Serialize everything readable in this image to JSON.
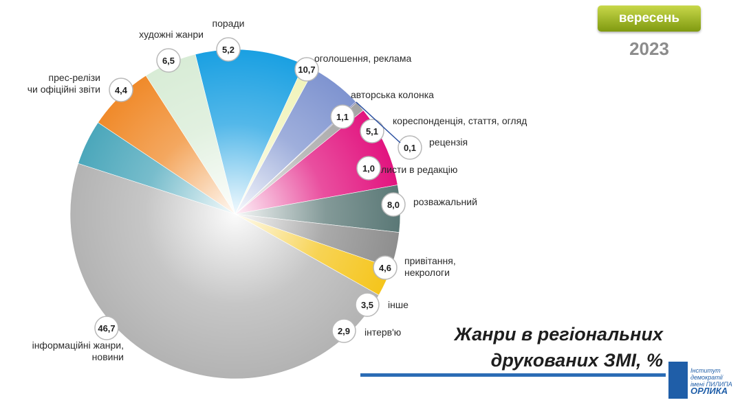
{
  "header": {
    "month": "вересень",
    "year": "2023"
  },
  "title_lines": [
    "Жанри в регіональних",
    "друкованих ЗМІ, %"
  ],
  "logo": {
    "line1": "Інститут демократії",
    "line2": "імені ПИЛИПА",
    "line3": "ОРЛИКА"
  },
  "colors": {
    "badge": "#9cb51f",
    "rule": "#2b6cb5"
  },
  "chart_data": {
    "type": "pie",
    "title": "Жанри в регіональних друкованих ЗМІ, %",
    "slices": [
      {
        "label": [
          "оголошення, реклама"
        ],
        "value": 10.7,
        "display": "10,7",
        "color": "#1aa0e2"
      },
      {
        "label": [
          "авторська колонка"
        ],
        "value": 1.1,
        "display": "1,1",
        "color": "#f0f3b8"
      },
      {
        "label": [
          "кореспонденція, стаття, огляд"
        ],
        "value": 5.1,
        "display": "5,1",
        "color": "#7f94d0"
      },
      {
        "label": [
          "рецензія"
        ],
        "value": 0.1,
        "display": "0,1",
        "color": "#555599"
      },
      {
        "label": [
          "листи в редакцію"
        ],
        "value": 1.0,
        "display": "1,0",
        "color": "#a4a4a4"
      },
      {
        "label": [
          "розважальний"
        ],
        "value": 8.0,
        "display": "8,0",
        "color": "#e2147f"
      },
      {
        "label": [
          "привітання,",
          "некрологи"
        ],
        "value": 4.6,
        "display": "4,6",
        "color": "#5a7876"
      },
      {
        "label": [
          "інше"
        ],
        "value": 3.5,
        "display": "3,5",
        "color": "#8e8e8e"
      },
      {
        "label": [
          "інтерв'ю"
        ],
        "value": 2.9,
        "display": "2,9",
        "color": "#f5c51c"
      },
      {
        "label": [
          "інформаційні жанри,",
          "новини"
        ],
        "value": 46.7,
        "display": "46,7",
        "color": "#b3b3b3"
      },
      {
        "label": [
          "прес-релізи",
          "чи офіційні звіти"
        ],
        "value": 4.4,
        "display": "4,4",
        "color": "#4ba7bb"
      },
      {
        "label": [
          "художні жанри"
        ],
        "value": 6.5,
        "display": "6,5",
        "color": "#f08a2a"
      },
      {
        "label": [
          "поради"
        ],
        "value": 5.2,
        "display": "5,2",
        "color": "#d8ecd6"
      }
    ]
  }
}
